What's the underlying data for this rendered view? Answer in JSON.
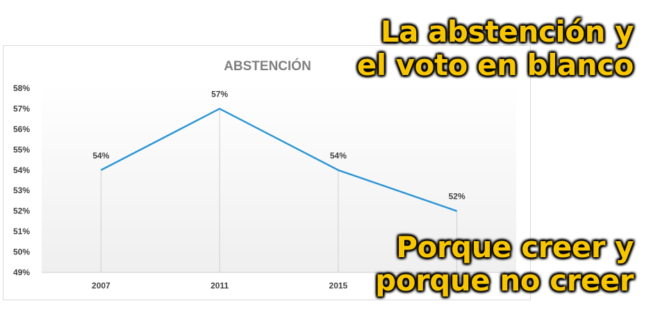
{
  "headline": {
    "line1": "La abstención y",
    "line2": "el voto en blanco",
    "line3": "Porque creer y",
    "line4": "porque no creer"
  },
  "colors": {
    "line": "#2e96d4",
    "headline_fill": "#f7c600",
    "headline_outline": "#000000",
    "axis_text": "#404040",
    "title_text": "#7f7f7f"
  },
  "chart_data": {
    "type": "line",
    "title": "ABSTENCIÓN",
    "categories": [
      "2007",
      "2011",
      "2015",
      ""
    ],
    "series": [
      {
        "values": [
          54,
          57,
          54,
          52
        ],
        "labels": [
          "54%",
          "57%",
          "54%",
          "52%"
        ]
      }
    ],
    "ylim": [
      49,
      58
    ],
    "yticks": [
      "49%",
      "50%",
      "51%",
      "52%",
      "53%",
      "54%",
      "55%",
      "56%",
      "57%",
      "58%"
    ],
    "grid": false,
    "drop_lines": true
  }
}
